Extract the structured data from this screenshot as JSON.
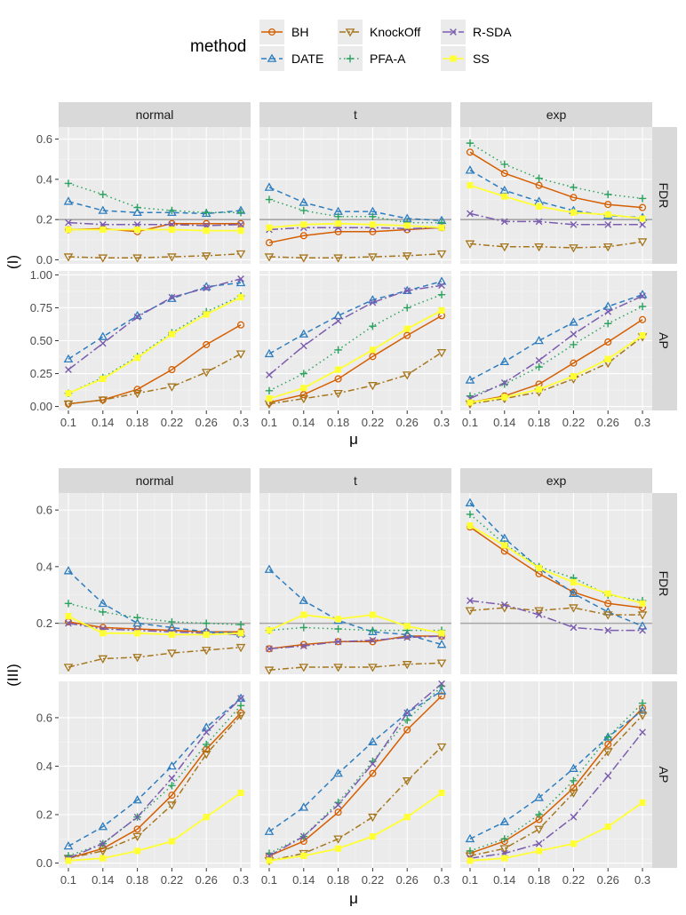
{
  "chart_data": {
    "type": "line",
    "x": [
      0.1,
      0.14,
      0.18,
      0.22,
      0.26,
      0.3
    ],
    "x_tick_labels": [
      "0.1",
      "0.14",
      "0.18",
      "0.22",
      "0.26",
      "0.3"
    ],
    "xlabel": "μ",
    "legend_title": "method",
    "legend_position": "top",
    "reference_line_fdr": 0.2,
    "columns": [
      "normal",
      "t",
      "exp"
    ],
    "methods": [
      {
        "name": "BH",
        "color": "#d55e00",
        "dash": "solid",
        "marker": "circle"
      },
      {
        "name": "DATE",
        "color": "#2e7dbf",
        "dash": "dashed",
        "marker": "triangle"
      },
      {
        "name": "KnockOff",
        "color": "#a6761d",
        "dash": "dashdot",
        "marker": "triangle-down"
      },
      {
        "name": "PFA-A",
        "color": "#2ca25f",
        "dash": "dotted",
        "marker": "plus"
      },
      {
        "name": "R-SDA",
        "color": "#7b5cae",
        "dash": "longdashdot",
        "marker": "cross"
      },
      {
        "name": "SS",
        "color": "#ffff33",
        "dash": "solid",
        "marker": "square"
      }
    ],
    "blocks": [
      {
        "label": "(I)",
        "rows": [
          {
            "strip": "FDR",
            "ylim": [
              -0.02,
              0.66
            ],
            "yticks": [
              0.0,
              0.2,
              0.4,
              0.6
            ],
            "ytick_labels": [
              "0.0",
              "0.2",
              "0.4",
              "0.6"
            ],
            "panels": [
              {
                "BH": [
                  0.15,
                  0.155,
                  0.14,
                  0.18,
                  0.18,
                  0.18
                ],
                "DATE": [
                  0.29,
                  0.245,
                  0.235,
                  0.235,
                  0.23,
                  0.245
                ],
                "KnockOff": [
                  0.015,
                  0.01,
                  0.01,
                  0.015,
                  0.02,
                  0.03
                ],
                "PFA-A": [
                  0.38,
                  0.325,
                  0.26,
                  0.245,
                  0.235,
                  0.235
                ],
                "R-SDA": [
                  0.185,
                  0.175,
                  0.175,
                  0.175,
                  0.17,
                  0.175
                ],
                "SS": [
                  0.15,
                  0.15,
                  0.15,
                  0.15,
                  0.145,
                  0.145
                ]
              },
              {
                "BH": [
                  0.085,
                  0.12,
                  0.14,
                  0.14,
                  0.15,
                  0.16
                ],
                "DATE": [
                  0.36,
                  0.285,
                  0.24,
                  0.24,
                  0.205,
                  0.195
                ],
                "KnockOff": [
                  0.015,
                  0.01,
                  0.01,
                  0.015,
                  0.02,
                  0.03
                ],
                "PFA-A": [
                  0.3,
                  0.245,
                  0.215,
                  0.215,
                  0.185,
                  0.185
                ],
                "R-SDA": [
                  0.15,
                  0.16,
                  0.16,
                  0.16,
                  0.155,
                  0.16
                ],
                "SS": [
                  0.16,
                  0.175,
                  0.18,
                  0.175,
                  0.17,
                  0.16
                ]
              },
              {
                "BH": [
                  0.535,
                  0.43,
                  0.37,
                  0.31,
                  0.275,
                  0.26
                ],
                "DATE": [
                  0.445,
                  0.345,
                  0.29,
                  0.245,
                  0.22,
                  0.21
                ],
                "KnockOff": [
                  0.08,
                  0.065,
                  0.065,
                  0.06,
                  0.065,
                  0.09
                ],
                "PFA-A": [
                  0.58,
                  0.475,
                  0.405,
                  0.36,
                  0.325,
                  0.305
                ],
                "R-SDA": [
                  0.23,
                  0.19,
                  0.19,
                  0.175,
                  0.175,
                  0.175
                ],
                "SS": [
                  0.37,
                  0.315,
                  0.265,
                  0.235,
                  0.225,
                  0.205
                ]
              }
            ]
          },
          {
            "strip": "AP",
            "ylim": [
              -0.03,
              1.03
            ],
            "yticks": [
              0.0,
              0.25,
              0.5,
              0.75,
              1.0
            ],
            "ytick_labels": [
              "0.00",
              "0.25",
              "0.50",
              "0.75",
              "1.00"
            ],
            "panels": [
              {
                "BH": [
                  0.02,
                  0.05,
                  0.13,
                  0.28,
                  0.47,
                  0.62
                ],
                "DATE": [
                  0.36,
                  0.53,
                  0.69,
                  0.82,
                  0.91,
                  0.94
                ],
                "KnockOff": [
                  0.02,
                  0.05,
                  0.1,
                  0.15,
                  0.26,
                  0.4
                ],
                "PFA-A": [
                  0.1,
                  0.22,
                  0.38,
                  0.56,
                  0.72,
                  0.84
                ],
                "R-SDA": [
                  0.28,
                  0.48,
                  0.68,
                  0.83,
                  0.9,
                  0.97
                ],
                "SS": [
                  0.1,
                  0.21,
                  0.37,
                  0.55,
                  0.7,
                  0.83
                ]
              },
              {
                "BH": [
                  0.03,
                  0.09,
                  0.21,
                  0.38,
                  0.54,
                  0.69
                ],
                "DATE": [
                  0.4,
                  0.55,
                  0.69,
                  0.81,
                  0.88,
                  0.95
                ],
                "KnockOff": [
                  0.02,
                  0.06,
                  0.1,
                  0.16,
                  0.24,
                  0.41
                ],
                "PFA-A": [
                  0.12,
                  0.25,
                  0.43,
                  0.61,
                  0.75,
                  0.85
                ],
                "R-SDA": [
                  0.24,
                  0.46,
                  0.65,
                  0.79,
                  0.88,
                  0.92
                ],
                "SS": [
                  0.06,
                  0.14,
                  0.28,
                  0.43,
                  0.59,
                  0.73
                ]
              },
              {
                "BH": [
                  0.03,
                  0.08,
                  0.17,
                  0.33,
                  0.49,
                  0.66
                ],
                "DATE": [
                  0.2,
                  0.34,
                  0.5,
                  0.64,
                  0.76,
                  0.85
                ],
                "KnockOff": [
                  0.02,
                  0.06,
                  0.11,
                  0.21,
                  0.33,
                  0.53
                ],
                "PFA-A": [
                  0.08,
                  0.17,
                  0.3,
                  0.47,
                  0.63,
                  0.76
                ],
                "R-SDA": [
                  0.06,
                  0.18,
                  0.35,
                  0.55,
                  0.72,
                  0.84
                ],
                "SS": [
                  0.03,
                  0.07,
                  0.13,
                  0.23,
                  0.36,
                  0.54
                ]
              }
            ]
          }
        ]
      },
      {
        "label": "(III)",
        "rows": [
          {
            "strip": "FDR",
            "ylim": [
              0.02,
              0.66
            ],
            "yticks": [
              0.2,
              0.4,
              0.6
            ],
            "ytick_labels": [
              "0.2",
              "0.4",
              "0.6"
            ],
            "panels": [
              {
                "BH": [
                  0.205,
                  0.185,
                  0.18,
                  0.175,
                  0.17,
                  0.17
                ],
                "DATE": [
                  0.385,
                  0.27,
                  0.2,
                  0.185,
                  0.17,
                  0.165
                ],
                "KnockOff": [
                  0.045,
                  0.075,
                  0.08,
                  0.095,
                  0.105,
                  0.115
                ],
                "PFA-A": [
                  0.27,
                  0.24,
                  0.22,
                  0.205,
                  0.2,
                  0.195
                ],
                "R-SDA": [
                  0.2,
                  0.18,
                  0.175,
                  0.17,
                  0.165,
                  0.16
                ],
                "SS": [
                  0.225,
                  0.165,
                  0.165,
                  0.16,
                  0.16,
                  0.165
                ]
              },
              {
                "BH": [
                  0.11,
                  0.125,
                  0.135,
                  0.135,
                  0.155,
                  0.155
                ],
                "DATE": [
                  0.39,
                  0.28,
                  0.21,
                  0.17,
                  0.16,
                  0.125
                ],
                "KnockOff": [
                  0.035,
                  0.045,
                  0.045,
                  0.045,
                  0.055,
                  0.06
                ],
                "PFA-A": [
                  0.175,
                  0.185,
                  0.18,
                  0.175,
                  0.175,
                  0.175
                ],
                "R-SDA": [
                  0.11,
                  0.12,
                  0.135,
                  0.14,
                  0.15,
                  0.155
                ],
                "SS": [
                  0.175,
                  0.23,
                  0.215,
                  0.23,
                  0.19,
                  0.165
                ]
              },
              {
                "BH": [
                  0.54,
                  0.455,
                  0.375,
                  0.31,
                  0.27,
                  0.255
                ],
                "DATE": [
                  0.625,
                  0.5,
                  0.395,
                  0.305,
                  0.24,
                  0.19
                ],
                "KnockOff": [
                  0.245,
                  0.255,
                  0.245,
                  0.255,
                  0.23,
                  0.23
                ],
                "PFA-A": [
                  0.585,
                  0.48,
                  0.4,
                  0.36,
                  0.3,
                  0.28
                ],
                "R-SDA": [
                  0.28,
                  0.265,
                  0.23,
                  0.185,
                  0.175,
                  0.175
                ],
                "SS": [
                  0.545,
                  0.475,
                  0.395,
                  0.345,
                  0.305,
                  0.27
                ]
              }
            ]
          },
          {
            "strip": "AP",
            "ylim": [
              -0.02,
              0.75
            ],
            "yticks": [
              0.0,
              0.2,
              0.4,
              0.6
            ],
            "ytick_labels": [
              "0.0",
              "0.2",
              "0.4",
              "0.6"
            ],
            "panels": [
              {
                "BH": [
                  0.02,
                  0.06,
                  0.14,
                  0.28,
                  0.47,
                  0.62
                ],
                "DATE": [
                  0.07,
                  0.15,
                  0.26,
                  0.4,
                  0.56,
                  0.68
                ],
                "KnockOff": [
                  0.02,
                  0.05,
                  0.11,
                  0.24,
                  0.45,
                  0.61
                ],
                "PFA-A": [
                  0.03,
                  0.08,
                  0.19,
                  0.32,
                  0.49,
                  0.65
                ],
                "R-SDA": [
                  0.02,
                  0.08,
                  0.19,
                  0.35,
                  0.54,
                  0.68
                ],
                "SS": [
                  0.01,
                  0.02,
                  0.05,
                  0.09,
                  0.19,
                  0.29
                ]
              },
              {
                "BH": [
                  0.03,
                  0.09,
                  0.21,
                  0.37,
                  0.55,
                  0.69
                ],
                "DATE": [
                  0.13,
                  0.23,
                  0.37,
                  0.5,
                  0.62,
                  0.71
                ],
                "KnockOff": [
                  0.01,
                  0.04,
                  0.1,
                  0.19,
                  0.34,
                  0.48
                ],
                "PFA-A": [
                  0.04,
                  0.11,
                  0.25,
                  0.42,
                  0.59,
                  0.73
                ],
                "R-SDA": [
                  0.03,
                  0.11,
                  0.24,
                  0.41,
                  0.62,
                  0.74
                ],
                "SS": [
                  0.01,
                  0.03,
                  0.06,
                  0.11,
                  0.19,
                  0.29
                ]
              },
              {
                "BH": [
                  0.04,
                  0.09,
                  0.18,
                  0.31,
                  0.49,
                  0.64
                ],
                "DATE": [
                  0.1,
                  0.17,
                  0.27,
                  0.39,
                  0.52,
                  0.63
                ],
                "KnockOff": [
                  0.03,
                  0.06,
                  0.14,
                  0.29,
                  0.46,
                  0.61
                ],
                "PFA-A": [
                  0.05,
                  0.1,
                  0.2,
                  0.34,
                  0.52,
                  0.66
                ],
                "R-SDA": [
                  0.02,
                  0.04,
                  0.08,
                  0.19,
                  0.36,
                  0.54
                ],
                "SS": [
                  0.01,
                  0.02,
                  0.05,
                  0.08,
                  0.15,
                  0.25
                ]
              }
            ]
          }
        ]
      }
    ]
  }
}
